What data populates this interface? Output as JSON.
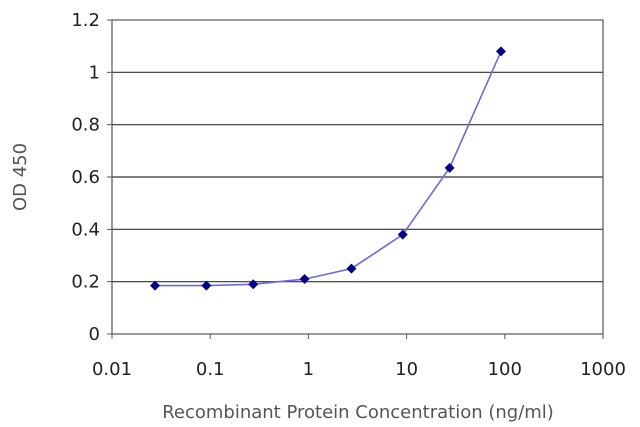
{
  "chart_data": {
    "type": "scatter",
    "xlabel": "Recombinant Protein Concentration (ng/ml)",
    "ylabel": "OD 450",
    "x_scale": "log",
    "xlim": [
      0.01,
      1000
    ],
    "ylim": [
      0,
      1.2
    ],
    "x_ticks": [
      "0.01",
      "0.1",
      "1",
      "10",
      "100",
      "1000"
    ],
    "y_ticks": [
      "0",
      "0.2",
      "0.4",
      "0.6",
      "0.8",
      "1",
      "1.2"
    ],
    "grid": "horizontal",
    "series": [
      {
        "x": [
          0.0274,
          0.0914,
          0.2743,
          0.914,
          2.743,
          9.14,
          27.43,
          91.4
        ],
        "y": [
          0.185,
          0.185,
          0.19,
          0.21,
          0.25,
          0.38,
          0.635,
          1.08
        ],
        "color": "#00008b",
        "line_color": "#6a6ae0"
      }
    ]
  }
}
